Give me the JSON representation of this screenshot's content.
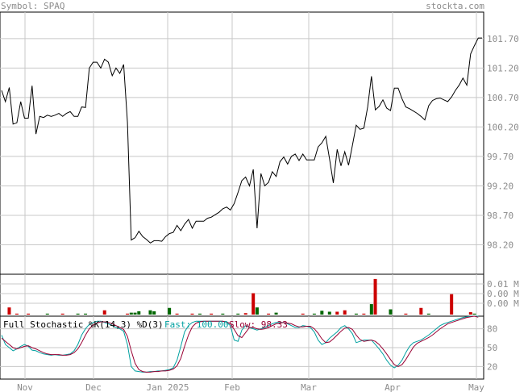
{
  "header": {
    "symbol_label": "Symbol: SPAQ",
    "brand": "stockta.com"
  },
  "price_axis": {
    "ticks": [
      "101.70",
      "101.20",
      "100.70",
      "100.20",
      "99.70",
      "99.20",
      "98.70",
      "98.20"
    ]
  },
  "volume_axis": {
    "ticks": [
      "0.01 M",
      "0.00 M",
      "0.00 M"
    ]
  },
  "stoch_axis": {
    "ticks": [
      "80",
      "50",
      "20"
    ]
  },
  "x_axis": {
    "ticks": [
      "Nov",
      "Dec",
      "Jan 2025",
      "Feb",
      "Mar",
      "Apr",
      "May"
    ]
  },
  "stochastic": {
    "title": "Full Stochastic %K(14,3) %D(3)",
    "fast_label": "Fast: 100.00",
    "slow_label": "Slow: 98.33",
    "fast_color": "#00a0a0",
    "slow_color": "#990033"
  },
  "colors": {
    "price_line": "#000000",
    "volume_up": "#006600",
    "volume_down": "#cc0000",
    "grid": "#c8c8c8"
  },
  "chart_data": [
    {
      "type": "line",
      "title": "",
      "series": [
        {
          "values": [
            100.82,
            100.63,
            100.87,
            100.25,
            100.27,
            100.63,
            100.35,
            100.35,
            100.9,
            100.08,
            100.38,
            100.36,
            100.4,
            100.38,
            100.4,
            100.43,
            100.38,
            100.43,
            100.46,
            100.38,
            100.38,
            100.54,
            100.53,
            101.2,
            101.3,
            101.3,
            101.2,
            101.35,
            101.3,
            101.07,
            101.2,
            101.11,
            101.26,
            100.28,
            98.28,
            98.32,
            98.43,
            98.34,
            98.29,
            98.23,
            98.27,
            98.27,
            98.26,
            98.34,
            98.39,
            98.41,
            98.53,
            98.44,
            98.55,
            98.63,
            98.48,
            98.6,
            98.6,
            98.6,
            98.65,
            98.67,
            98.71,
            98.75,
            98.81,
            98.84,
            98.79,
            98.9,
            99.09,
            99.29,
            99.35,
            99.2,
            99.48,
            98.48,
            99.41,
            99.2,
            99.26,
            99.44,
            99.36,
            99.61,
            99.69,
            99.57,
            99.7,
            99.74,
            99.63,
            99.74,
            99.64,
            99.64,
            99.64,
            99.86,
            99.93,
            100.04,
            99.66,
            99.25,
            99.82,
            99.54,
            99.78,
            99.55,
            99.89,
            100.23,
            100.16,
            100.18,
            100.54,
            101.06,
            100.49,
            100.55,
            100.66,
            100.52,
            100.48,
            100.86,
            100.86,
            100.68,
            100.54,
            100.51,
            100.47,
            100.43,
            100.38,
            100.32,
            100.56,
            100.65,
            100.68,
            100.69,
            100.66,
            100.63,
            100.71,
            100.82,
            100.91,
            101.03,
            100.91,
            101.44,
            101.58,
            101.71,
            101.71
          ]
        }
      ],
      "x_ticks": [
        "Nov",
        "Dec",
        "Jan 2025",
        "Feb",
        "Mar",
        "Apr",
        "May"
      ],
      "y_ticks": [
        101.7,
        101.2,
        100.7,
        100.2,
        99.7,
        99.2,
        98.7,
        98.2
      ],
      "ylim": [
        97.7,
        102.15
      ],
      "grid": true
    },
    {
      "type": "bar",
      "title": "",
      "bars": [
        {
          "i": 2,
          "v": 0.0015,
          "dir": "down"
        },
        {
          "i": 4,
          "v": 0.0002,
          "dir": "down"
        },
        {
          "i": 7,
          "v": 0.0002,
          "dir": "down"
        },
        {
          "i": 12,
          "v": 0.0002,
          "dir": "up"
        },
        {
          "i": 16,
          "v": 0.0002,
          "dir": "down"
        },
        {
          "i": 20,
          "v": 0.0002,
          "dir": "up"
        },
        {
          "i": 22,
          "v": 0.0002,
          "dir": "up"
        },
        {
          "i": 27,
          "v": 0.0009,
          "dir": "down"
        },
        {
          "i": 33,
          "v": 0.0002,
          "dir": "down"
        },
        {
          "i": 34,
          "v": 0.0004,
          "dir": "up"
        },
        {
          "i": 35,
          "v": 0.0004,
          "dir": "up"
        },
        {
          "i": 36,
          "v": 0.0007,
          "dir": "up"
        },
        {
          "i": 39,
          "v": 0.0009,
          "dir": "up"
        },
        {
          "i": 40,
          "v": 0.0007,
          "dir": "up"
        },
        {
          "i": 44,
          "v": 0.0014,
          "dir": "up"
        },
        {
          "i": 46,
          "v": 0.0002,
          "dir": "down"
        },
        {
          "i": 50,
          "v": 0.0002,
          "dir": "down"
        },
        {
          "i": 52,
          "v": 0.0002,
          "dir": "up"
        },
        {
          "i": 55,
          "v": 0.0002,
          "dir": "down"
        },
        {
          "i": 58,
          "v": 0.0002,
          "dir": "up"
        },
        {
          "i": 62,
          "v": 0.0002,
          "dir": "up"
        },
        {
          "i": 64,
          "v": 0.0003,
          "dir": "down"
        },
        {
          "i": 66,
          "v": 0.0045,
          "dir": "down"
        },
        {
          "i": 67,
          "v": 0.0015,
          "dir": "up"
        },
        {
          "i": 70,
          "v": 0.0002,
          "dir": "down"
        },
        {
          "i": 72,
          "v": 0.0004,
          "dir": "up"
        },
        {
          "i": 79,
          "v": 0.0002,
          "dir": "down"
        },
        {
          "i": 82,
          "v": 0.0002,
          "dir": "up"
        },
        {
          "i": 84,
          "v": 0.0008,
          "dir": "up"
        },
        {
          "i": 86,
          "v": 0.0006,
          "dir": "up"
        },
        {
          "i": 88,
          "v": 0.0006,
          "dir": "down"
        },
        {
          "i": 90,
          "v": 0.0009,
          "dir": "down"
        },
        {
          "i": 93,
          "v": 0.0002,
          "dir": "up"
        },
        {
          "i": 95,
          "v": 0.0002,
          "dir": "down"
        },
        {
          "i": 97,
          "v": 0.0022,
          "dir": "up"
        },
        {
          "i": 98,
          "v": 0.0075,
          "dir": "down"
        },
        {
          "i": 102,
          "v": 0.0011,
          "dir": "up"
        },
        {
          "i": 106,
          "v": 0.0002,
          "dir": "down"
        },
        {
          "i": 110,
          "v": 0.0014,
          "dir": "down"
        },
        {
          "i": 112,
          "v": 0.0002,
          "dir": "up"
        },
        {
          "i": 118,
          "v": 0.0043,
          "dir": "down"
        },
        {
          "i": 123,
          "v": 0.0005,
          "dir": "down"
        },
        {
          "i": 124,
          "v": 0.0002,
          "dir": "up"
        }
      ],
      "ylim": [
        0,
        0.0085
      ]
    },
    {
      "type": "line",
      "title": "Full Stochastic %K(14,3) %D(3)",
      "series": [
        {
          "name": "Fast",
          "values": [
            70,
            55,
            50,
            45,
            48,
            52,
            55,
            52,
            46,
            45,
            42,
            40,
            39,
            38,
            39,
            38,
            38,
            39,
            40,
            45,
            55,
            70,
            80,
            87,
            90,
            92,
            92,
            90,
            88,
            85,
            82,
            80,
            76,
            55,
            20,
            13,
            12,
            11,
            11,
            12,
            12,
            13,
            13,
            14,
            15,
            18,
            30,
            52,
            75,
            85,
            90,
            92,
            92,
            92,
            92,
            92,
            92,
            92,
            92,
            90,
            85,
            62,
            60,
            78,
            85,
            82,
            80,
            78,
            80,
            82,
            85,
            88,
            90,
            90,
            90,
            88,
            85,
            82,
            82,
            85,
            84,
            82,
            75,
            62,
            55,
            58,
            65,
            70,
            75,
            82,
            85,
            80,
            72,
            58,
            60,
            62,
            62,
            62,
            55,
            48,
            40,
            30,
            22,
            18,
            22,
            30,
            42,
            52,
            58,
            60,
            62,
            66,
            70,
            75,
            80,
            85,
            88,
            90,
            92,
            94,
            96,
            98,
            99,
            100,
            100,
            100
          ]
        },
        {
          "name": "Slow",
          "values": [
            65,
            60,
            55,
            50,
            48,
            50,
            52,
            53,
            50,
            48,
            45,
            42,
            40,
            39,
            39,
            39,
            38,
            38,
            39,
            42,
            48,
            58,
            70,
            80,
            86,
            89,
            91,
            91,
            90,
            88,
            85,
            82,
            79,
            68,
            45,
            25,
            15,
            12,
            11,
            11,
            12,
            12,
            13,
            13,
            14,
            16,
            21,
            33,
            52,
            70,
            83,
            89,
            91,
            92,
            92,
            92,
            92,
            92,
            92,
            91,
            88,
            79,
            69,
            66,
            74,
            82,
            82,
            80,
            79,
            80,
            82,
            85,
            88,
            89,
            90,
            89,
            88,
            85,
            83,
            83,
            84,
            84,
            80,
            73,
            64,
            58,
            59,
            64,
            70,
            76,
            81,
            82,
            79,
            70,
            63,
            60,
            61,
            62,
            60,
            55,
            48,
            40,
            31,
            23,
            20,
            23,
            31,
            41,
            51,
            57,
            60,
            63,
            66,
            70,
            75,
            80,
            84,
            88,
            90,
            92,
            94,
            96,
            98,
            99,
            100,
            98.33
          ]
        }
      ],
      "y_ticks": [
        80,
        50,
        20
      ],
      "ylim": [
        0,
        100
      ]
    }
  ]
}
